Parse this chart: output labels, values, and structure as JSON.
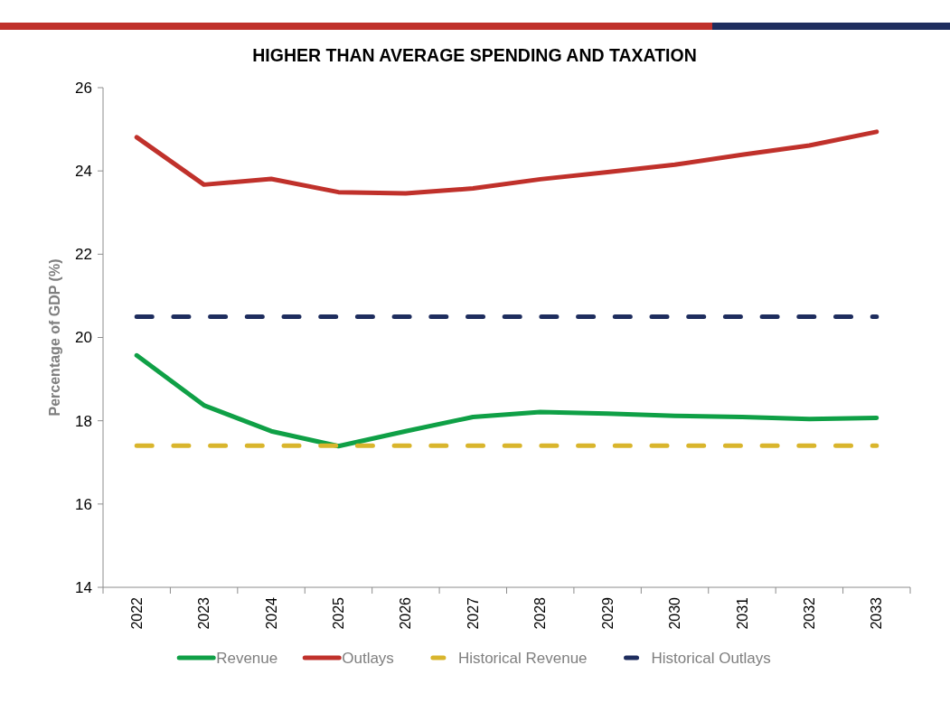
{
  "chart_data": {
    "type": "line",
    "title": "HIGHER THAN AVERAGE SPENDING AND TAXATION",
    "ylabel": "Percentage of GDP (%)",
    "categories": [
      "2022",
      "2023",
      "2024",
      "2025",
      "2026",
      "2027",
      "2028",
      "2029",
      "2030",
      "2031",
      "2032",
      "2033"
    ],
    "series": [
      {
        "name": "Revenue",
        "color": "#0fa046",
        "values": [
          19.57,
          18.37,
          17.75,
          17.39,
          17.75,
          18.09,
          18.21,
          18.17,
          18.12,
          18.09,
          18.04,
          18.07
        ]
      },
      {
        "name": "Outlays",
        "color": "#c0312b",
        "values": [
          24.81,
          23.67,
          23.81,
          23.49,
          23.46,
          23.58,
          23.8,
          23.97,
          24.15,
          24.39,
          24.61,
          24.94
        ]
      },
      {
        "name": "Historical Revenue",
        "color": "#d9b52c",
        "line_style": "dashed",
        "values": [
          17.4,
          17.4,
          17.4,
          17.4,
          17.4,
          17.4,
          17.4,
          17.4,
          17.4,
          17.4,
          17.4,
          17.4
        ]
      },
      {
        "name": "Historical Outlays",
        "color": "#1e2d5e",
        "line_style": "dashed",
        "values": [
          20.5,
          20.5,
          20.5,
          20.5,
          20.5,
          20.5,
          20.5,
          20.5,
          20.5,
          20.5,
          20.5,
          20.5
        ]
      }
    ],
    "ylim": [
      14,
      26
    ],
    "yticks": [
      14,
      16,
      18,
      20,
      22,
      24,
      26
    ],
    "legend": "bottom"
  }
}
